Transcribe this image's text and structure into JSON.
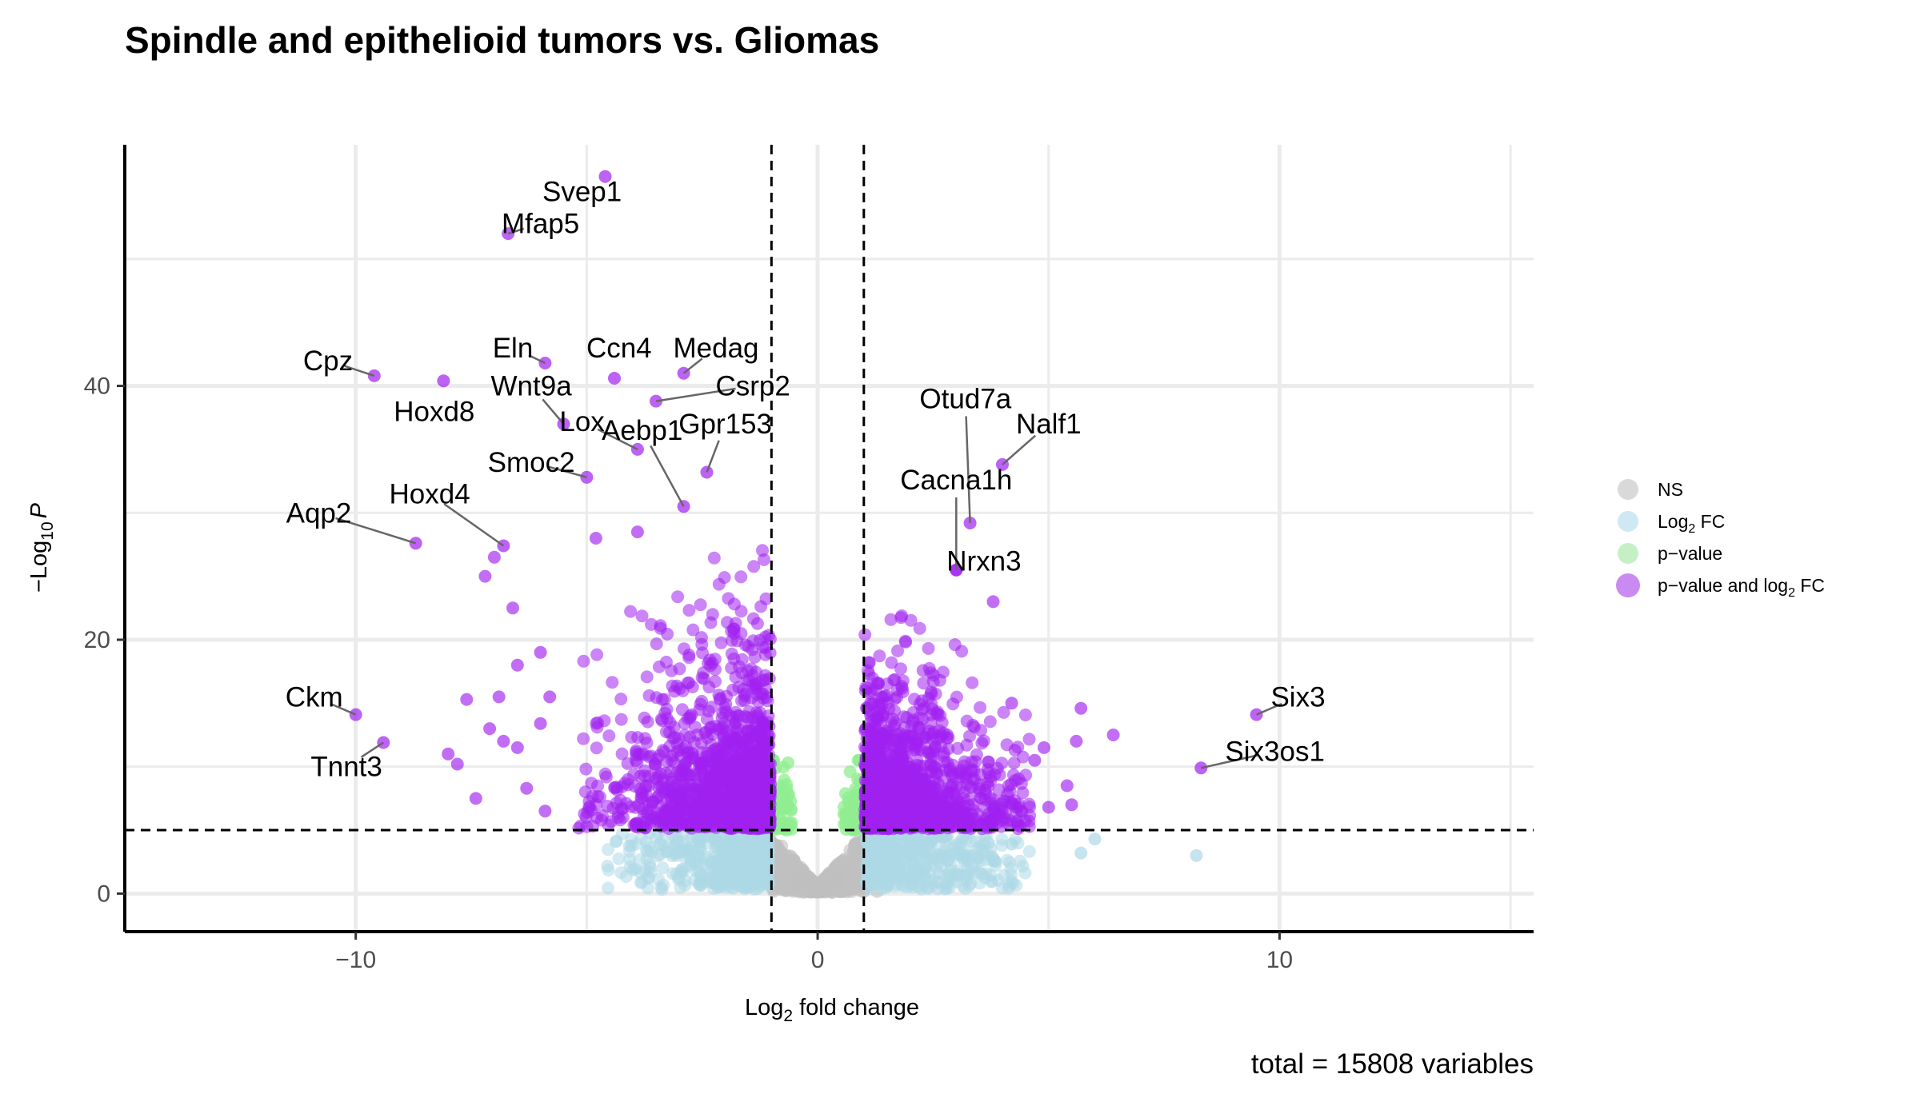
{
  "chart_data": {
    "type": "scatter",
    "title": "Spindle and epithelioid tumors vs. Gliomas",
    "caption": "total = 15808 variables",
    "xlabel": {
      "base": "Log",
      "sub": "2",
      "rest": " fold change"
    },
    "ylabel": {
      "pre": "−Log",
      "sub": "10",
      "italic": "P"
    },
    "xlim": [
      -15,
      15.5
    ],
    "ylim": [
      -3,
      59
    ],
    "x_ticks": [
      -10,
      0,
      10
    ],
    "x_tick_labels": [
      "−10",
      "0",
      "10"
    ],
    "y_ticks": [
      0,
      20,
      40
    ],
    "y_tick_labels": [
      "0",
      "20",
      "40"
    ],
    "grid": true,
    "thresholds": {
      "log2fc": [
        -1,
        1
      ],
      "neg_log10_p": 5
    },
    "colors": {
      "NS": "#bfbfbf",
      "Log2FC": "#add8e6",
      "pvalue": "#90ee90",
      "both": "#a020f0"
    },
    "legend": {
      "position": "right",
      "entries": [
        {
          "key": "NS",
          "text": "NS",
          "color": "#d9d9d9"
        },
        {
          "key": "Log2FC",
          "text": "Log",
          "sub": "2",
          "rest": " FC",
          "color": "#cfe8f3"
        },
        {
          "key": "pvalue",
          "text": "p−value",
          "color": "#c5f0c5"
        },
        {
          "key": "both",
          "text": "p−value and log",
          "sub": "2",
          "rest": " FC",
          "color": "#c98af2"
        }
      ]
    },
    "labeled_points": [
      {
        "gene": "Svep1",
        "x": -4.6,
        "y": 56.5,
        "lx": -5.1,
        "ly": 55.3
      },
      {
        "gene": "Mfap5",
        "x": -6.7,
        "y": 52.0,
        "lx": -6.0,
        "ly": 52.8
      },
      {
        "gene": "Cpz",
        "x": -9.6,
        "y": 40.8,
        "lx": -10.6,
        "ly": 42.0
      },
      {
        "gene": "Eln",
        "x": -5.9,
        "y": 41.8,
        "lx": -6.6,
        "ly": 43.0
      },
      {
        "gene": "Ccn4",
        "x": -4.4,
        "y": 40.6,
        "lx": -4.3,
        "ly": 43.0
      },
      {
        "gene": "Medag",
        "x": -2.9,
        "y": 41.0,
        "lx": -2.2,
        "ly": 43.0
      },
      {
        "gene": "Hoxd8",
        "x": -8.1,
        "y": 40.4,
        "lx": -8.3,
        "ly": 38.0
      },
      {
        "gene": "Wnt9a",
        "x": -5.5,
        "y": 37.0,
        "lx": -6.2,
        "ly": 40.0
      },
      {
        "gene": "Csrp2",
        "x": -3.5,
        "y": 38.8,
        "lx": -1.4,
        "ly": 40.0
      },
      {
        "gene": "Lox",
        "x": -3.9,
        "y": 35.0,
        "lx": -5.1,
        "ly": 37.2
      },
      {
        "gene": "Aebp1",
        "x": -2.9,
        "y": 30.5,
        "lx": -3.8,
        "ly": 36.5
      },
      {
        "gene": "Gpr153",
        "x": -2.4,
        "y": 33.2,
        "lx": -2.0,
        "ly": 37.0
      },
      {
        "gene": "Smoc2",
        "x": -5.0,
        "y": 32.8,
        "lx": -6.2,
        "ly": 34.0
      },
      {
        "gene": "Hoxd4",
        "x": -6.8,
        "y": 27.4,
        "lx": -8.4,
        "ly": 31.5
      },
      {
        "gene": "Aqp2",
        "x": -8.7,
        "y": 27.6,
        "lx": -10.8,
        "ly": 30.0
      },
      {
        "gene": "Otud7a",
        "x": 3.3,
        "y": 29.2,
        "lx": 3.2,
        "ly": 39.0
      },
      {
        "gene": "Nalf1",
        "x": 4.0,
        "y": 33.8,
        "lx": 5.0,
        "ly": 37.0
      },
      {
        "gene": "Cacna1h",
        "x": 3.0,
        "y": 25.5,
        "lx": 3.0,
        "ly": 32.6
      },
      {
        "gene": "Nrxn3",
        "x": 3.0,
        "y": 25.5,
        "lx": 3.6,
        "ly": 26.2
      },
      {
        "gene": "Six3",
        "x": 9.5,
        "y": 14.1,
        "lx": 10.4,
        "ly": 15.5
      },
      {
        "gene": "Six3os1",
        "x": 8.3,
        "y": 9.9,
        "lx": 9.9,
        "ly": 11.2
      },
      {
        "gene": "Ckm",
        "x": -10.0,
        "y": 14.1,
        "lx": -10.9,
        "ly": 15.5
      },
      {
        "gene": "Tnnt3",
        "x": -9.4,
        "y": 11.9,
        "lx": -10.2,
        "ly": 10.0
      }
    ],
    "extra_points": [
      {
        "x": -7.0,
        "y": 26.5
      },
      {
        "x": -7.2,
        "y": 25.0
      },
      {
        "x": -6.6,
        "y": 22.5
      },
      {
        "x": -6.9,
        "y": 15.5
      },
      {
        "x": -7.1,
        "y": 13.0
      },
      {
        "x": -7.6,
        "y": 15.3
      },
      {
        "x": -7.4,
        "y": 7.5
      },
      {
        "x": -8.0,
        "y": 11.0
      },
      {
        "x": -7.8,
        "y": 10.2
      },
      {
        "x": -6.5,
        "y": 11.5
      },
      {
        "x": -6.3,
        "y": 8.3
      },
      {
        "x": -6.0,
        "y": 13.4
      },
      {
        "x": -5.8,
        "y": 15.5
      },
      {
        "x": -5.9,
        "y": 6.5
      },
      {
        "x": -6.8,
        "y": 12.0
      },
      {
        "x": -6.0,
        "y": 19.0
      },
      {
        "x": -6.5,
        "y": 18.0
      },
      {
        "x": -4.8,
        "y": 28.0
      },
      {
        "x": -3.9,
        "y": 28.5
      },
      {
        "x": 5.7,
        "y": 14.6
      },
      {
        "x": 5.6,
        "y": 12.0
      },
      {
        "x": 6.4,
        "y": 12.5
      },
      {
        "x": 5.4,
        "y": 8.5
      },
      {
        "x": 5.5,
        "y": 7.0
      },
      {
        "x": 4.9,
        "y": 11.5
      },
      {
        "x": 4.7,
        "y": 10.5
      },
      {
        "x": 3.8,
        "y": 23.0
      },
      {
        "x": 4.2,
        "y": 15.0
      },
      {
        "x": 5.0,
        "y": 6.8
      }
    ],
    "extra_ns_points": [
      {
        "x": 5.7,
        "y": 3.2
      },
      {
        "x": 6.0,
        "y": 4.3
      },
      {
        "x": 8.2,
        "y": 3.0
      },
      {
        "x": 4.2,
        "y": 3.9
      },
      {
        "x": 3.7,
        "y": 4.0
      }
    ],
    "cloud": {
      "seed": 7,
      "both_left": 1400,
      "both_right": 1400,
      "lfc_left": 420,
      "lfc_right": 420,
      "pval": 120,
      "ns": 700
    }
  }
}
